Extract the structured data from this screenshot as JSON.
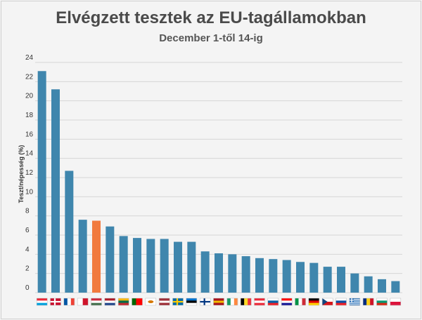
{
  "chart_data": {
    "type": "bar",
    "title": "Elvégzett tesztek az EU-tagállamokban",
    "subtitle": "December 1-től 14-ig",
    "ylabel": "Teszt/népesség (%)",
    "xlabel": "",
    "ylim": [
      0,
      24
    ],
    "yticks": [
      "0",
      "2",
      "4",
      "6",
      "8",
      "10",
      "12",
      "14",
      "16",
      "18",
      "20",
      "22",
      "24"
    ],
    "grid": true,
    "categories": [
      "Luxemburg",
      "Dánia",
      "Franciaország",
      "Málta",
      "Magyarország",
      "Hollandia",
      "Litvánia",
      "Portugália",
      "Ciprus",
      "Lettország",
      "Svédország",
      "Észtország",
      "Finnország",
      "Spanyolország",
      "Írország",
      "Belgium",
      "Ausztria",
      "Szlovénia",
      "Horvátország",
      "Olaszország",
      "Németország",
      "Csehország",
      "Szlovákia",
      "Görögország",
      "Románia",
      "Bulgária",
      "Lengyelország"
    ],
    "values": [
      23.1,
      21.2,
      12.7,
      7.6,
      7.5,
      6.9,
      5.9,
      5.7,
      5.6,
      5.6,
      5.3,
      5.3,
      4.3,
      4.1,
      4.0,
      3.8,
      3.6,
      3.5,
      3.4,
      3.2,
      3.1,
      2.7,
      2.7,
      2.0,
      1.7,
      1.4,
      1.2
    ],
    "highlight_index": 4,
    "colors": {
      "bar": "#3f86ad",
      "highlight": "#f17a3e",
      "grid": "#d6d6d6",
      "text": "#4a4a4a"
    },
    "flags": [
      "lu",
      "dk",
      "fr",
      "mt",
      "hu",
      "nl",
      "lt",
      "pt",
      "cy",
      "lv",
      "se",
      "ee",
      "fi",
      "es",
      "ie",
      "be",
      "at",
      "si",
      "hr",
      "it",
      "de",
      "cz",
      "sk",
      "gr",
      "ro",
      "bg",
      "pl"
    ]
  }
}
